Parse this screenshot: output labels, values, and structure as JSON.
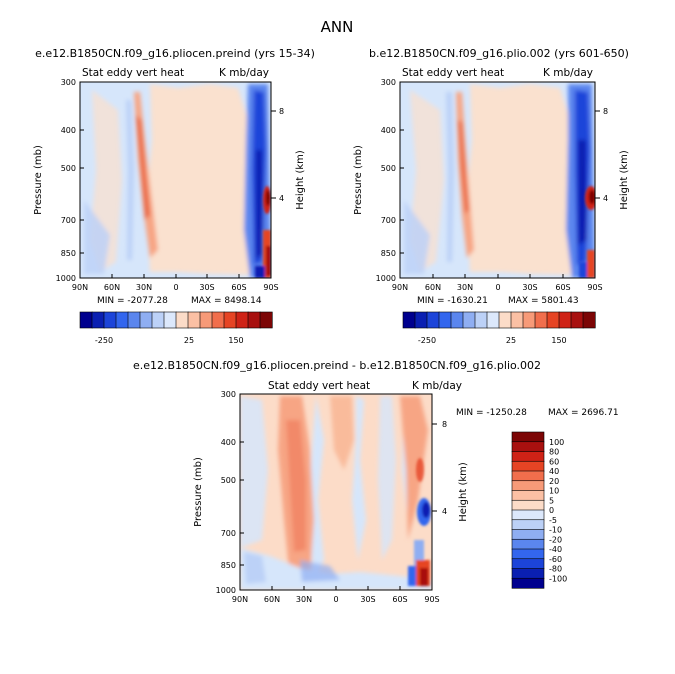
{
  "title": "ANN",
  "colors": {
    "bins": [
      "#00008e",
      "#0a1fb2",
      "#1c44d9",
      "#3366ee",
      "#5b86ee",
      "#8faef2",
      "#bcd1f7",
      "#dce8fb",
      "#fcdcc8",
      "#fbc0a4",
      "#f79a78",
      "#f16e4c",
      "#e64424",
      "#cf2216",
      "#a8100f",
      "#7c0505"
    ],
    "background_fill": "#d6e6fb",
    "axis": "#000000"
  },
  "chart_data": [
    {
      "type": "heatmap",
      "title": "e.e12.B1850CN.f09_g16.pliocen.preind (yrs 15-34)",
      "inner_left": "Stat eddy vert heat",
      "inner_right": "K mb/day",
      "ylabel": "Pressure (mb)",
      "ylabel_right": "Height (km)",
      "x_ticks": [
        "90N",
        "60N",
        "30N",
        "0",
        "30S",
        "60S",
        "90S"
      ],
      "y_ticks": [
        "300",
        "400",
        "500",
        "700",
        "850",
        "1000"
      ],
      "y_right_ticks": [
        "8",
        "4"
      ],
      "min_label": "MIN = -2077.28",
      "max_label": "MAX = 8498.14",
      "colorbar_labels": [
        "-250",
        "25",
        "150"
      ]
    },
    {
      "type": "heatmap",
      "title": "b.e12.B1850CN.f09_g16.plio.002 (yrs 601-650)",
      "inner_left": "Stat eddy vert heat",
      "inner_right": "K mb/day",
      "ylabel": "Pressure (mb)",
      "ylabel_right": "Height (km)",
      "x_ticks": [
        "90N",
        "60N",
        "30N",
        "0",
        "30S",
        "60S",
        "90S"
      ],
      "y_ticks": [
        "300",
        "400",
        "500",
        "700",
        "850",
        "1000"
      ],
      "y_right_ticks": [
        "8",
        "4"
      ],
      "min_label": "MIN = -1630.21",
      "max_label": "MAX = 5801.43",
      "colorbar_labels": [
        "-250",
        "25",
        "150"
      ]
    },
    {
      "type": "heatmap",
      "title": "e.e12.B1850CN.f09_g16.pliocen.preind - b.e12.B1850CN.f09_g16.plio.002",
      "inner_left": "Stat eddy vert heat",
      "inner_right": "K mb/day",
      "ylabel": "Pressure (mb)",
      "ylabel_right": "Height (km)",
      "x_ticks": [
        "90N",
        "60N",
        "30N",
        "0",
        "30S",
        "60S",
        "90S"
      ],
      "y_ticks": [
        "300",
        "400",
        "500",
        "700",
        "850",
        "1000"
      ],
      "y_right_ticks": [
        "8",
        "4"
      ],
      "min_label": "MIN = -1250.28",
      "max_label": "MAX = 2696.71",
      "colorbar_labels": [
        "100",
        "80",
        "60",
        "40",
        "20",
        "10",
        "5",
        "0",
        "-5",
        "-10",
        "-20",
        "-40",
        "-60",
        "-80",
        "-100"
      ]
    }
  ]
}
